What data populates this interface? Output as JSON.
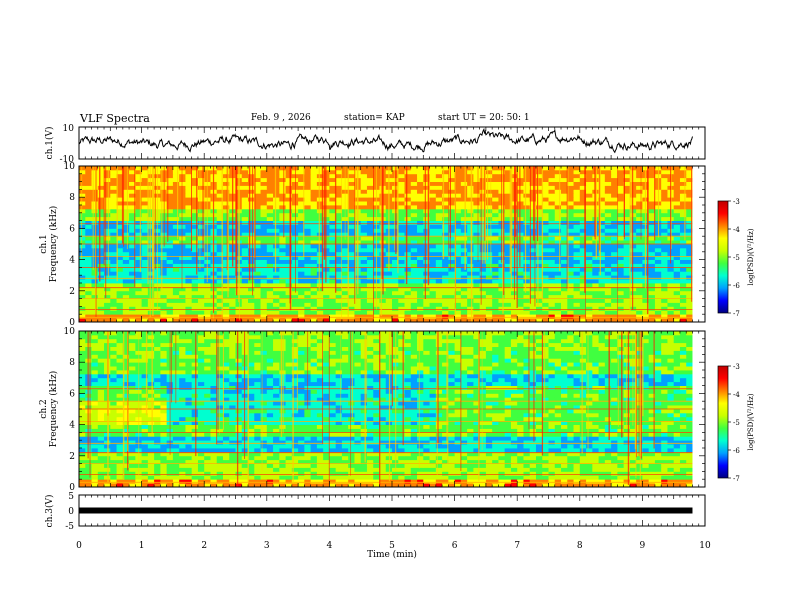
{
  "header": {
    "title": "VLF Spectra",
    "date": "Feb. 9 , 2026",
    "station": "station= KAP",
    "start": "start UT =  20: 50: 1"
  },
  "chart_data": [
    {
      "type": "line",
      "panel": "ch1-waveform",
      "ylabel": "ch.1(V)",
      "ylim": [
        -10,
        10
      ],
      "yticks": [
        "10",
        "-10"
      ],
      "xlim": [
        0,
        10
      ]
    },
    {
      "type": "heatmap",
      "panel": "ch1-spectrogram",
      "ylabel": "ch.1 Frequency (kHz)",
      "ylim": [
        0,
        10
      ],
      "yticks": [
        "0",
        "2",
        "4",
        "6",
        "8",
        "10"
      ],
      "xlim": [
        0,
        10
      ],
      "data_end_min": 9.8,
      "colorbar": {
        "label": "log(PSD)(V²/Hz)",
        "range": [
          -7,
          -3
        ],
        "ticks": [
          "-3",
          "-4",
          "-5",
          "-6",
          "-7"
        ]
      }
    },
    {
      "type": "heatmap",
      "panel": "ch2-spectrogram",
      "ylabel": "ch.2 Frequency (kHz)",
      "ylim": [
        0,
        10
      ],
      "yticks": [
        "0",
        "2",
        "4",
        "6",
        "8",
        "10"
      ],
      "xlim": [
        0,
        10
      ],
      "data_end_min": 9.8,
      "colorbar": {
        "label": "log(PSD)(V²/Hz)",
        "range": [
          -7,
          -3
        ],
        "ticks": [
          "-3",
          "-4",
          "-5",
          "-6",
          "-7"
        ]
      }
    },
    {
      "type": "line",
      "panel": "ch3-waveform",
      "ylabel": "ch.3(V)",
      "ylim": [
        -5,
        5
      ],
      "yticks": [
        "5",
        "0",
        "-5"
      ],
      "xlim": [
        0,
        10
      ],
      "constant_value": 0
    }
  ],
  "xaxis": {
    "label": "Time (min)",
    "ticks": [
      "0",
      "1",
      "2",
      "3",
      "4",
      "5",
      "6",
      "7",
      "8",
      "9",
      "10"
    ]
  },
  "colors": {
    "axes": "#000000",
    "trace": "#000000",
    "colormap": [
      "#000080",
      "#0000ff",
      "#00a0ff",
      "#00ffd0",
      "#40ff40",
      "#c8ff00",
      "#ffff00",
      "#ff8000",
      "#ff0000",
      "#c00000"
    ]
  }
}
